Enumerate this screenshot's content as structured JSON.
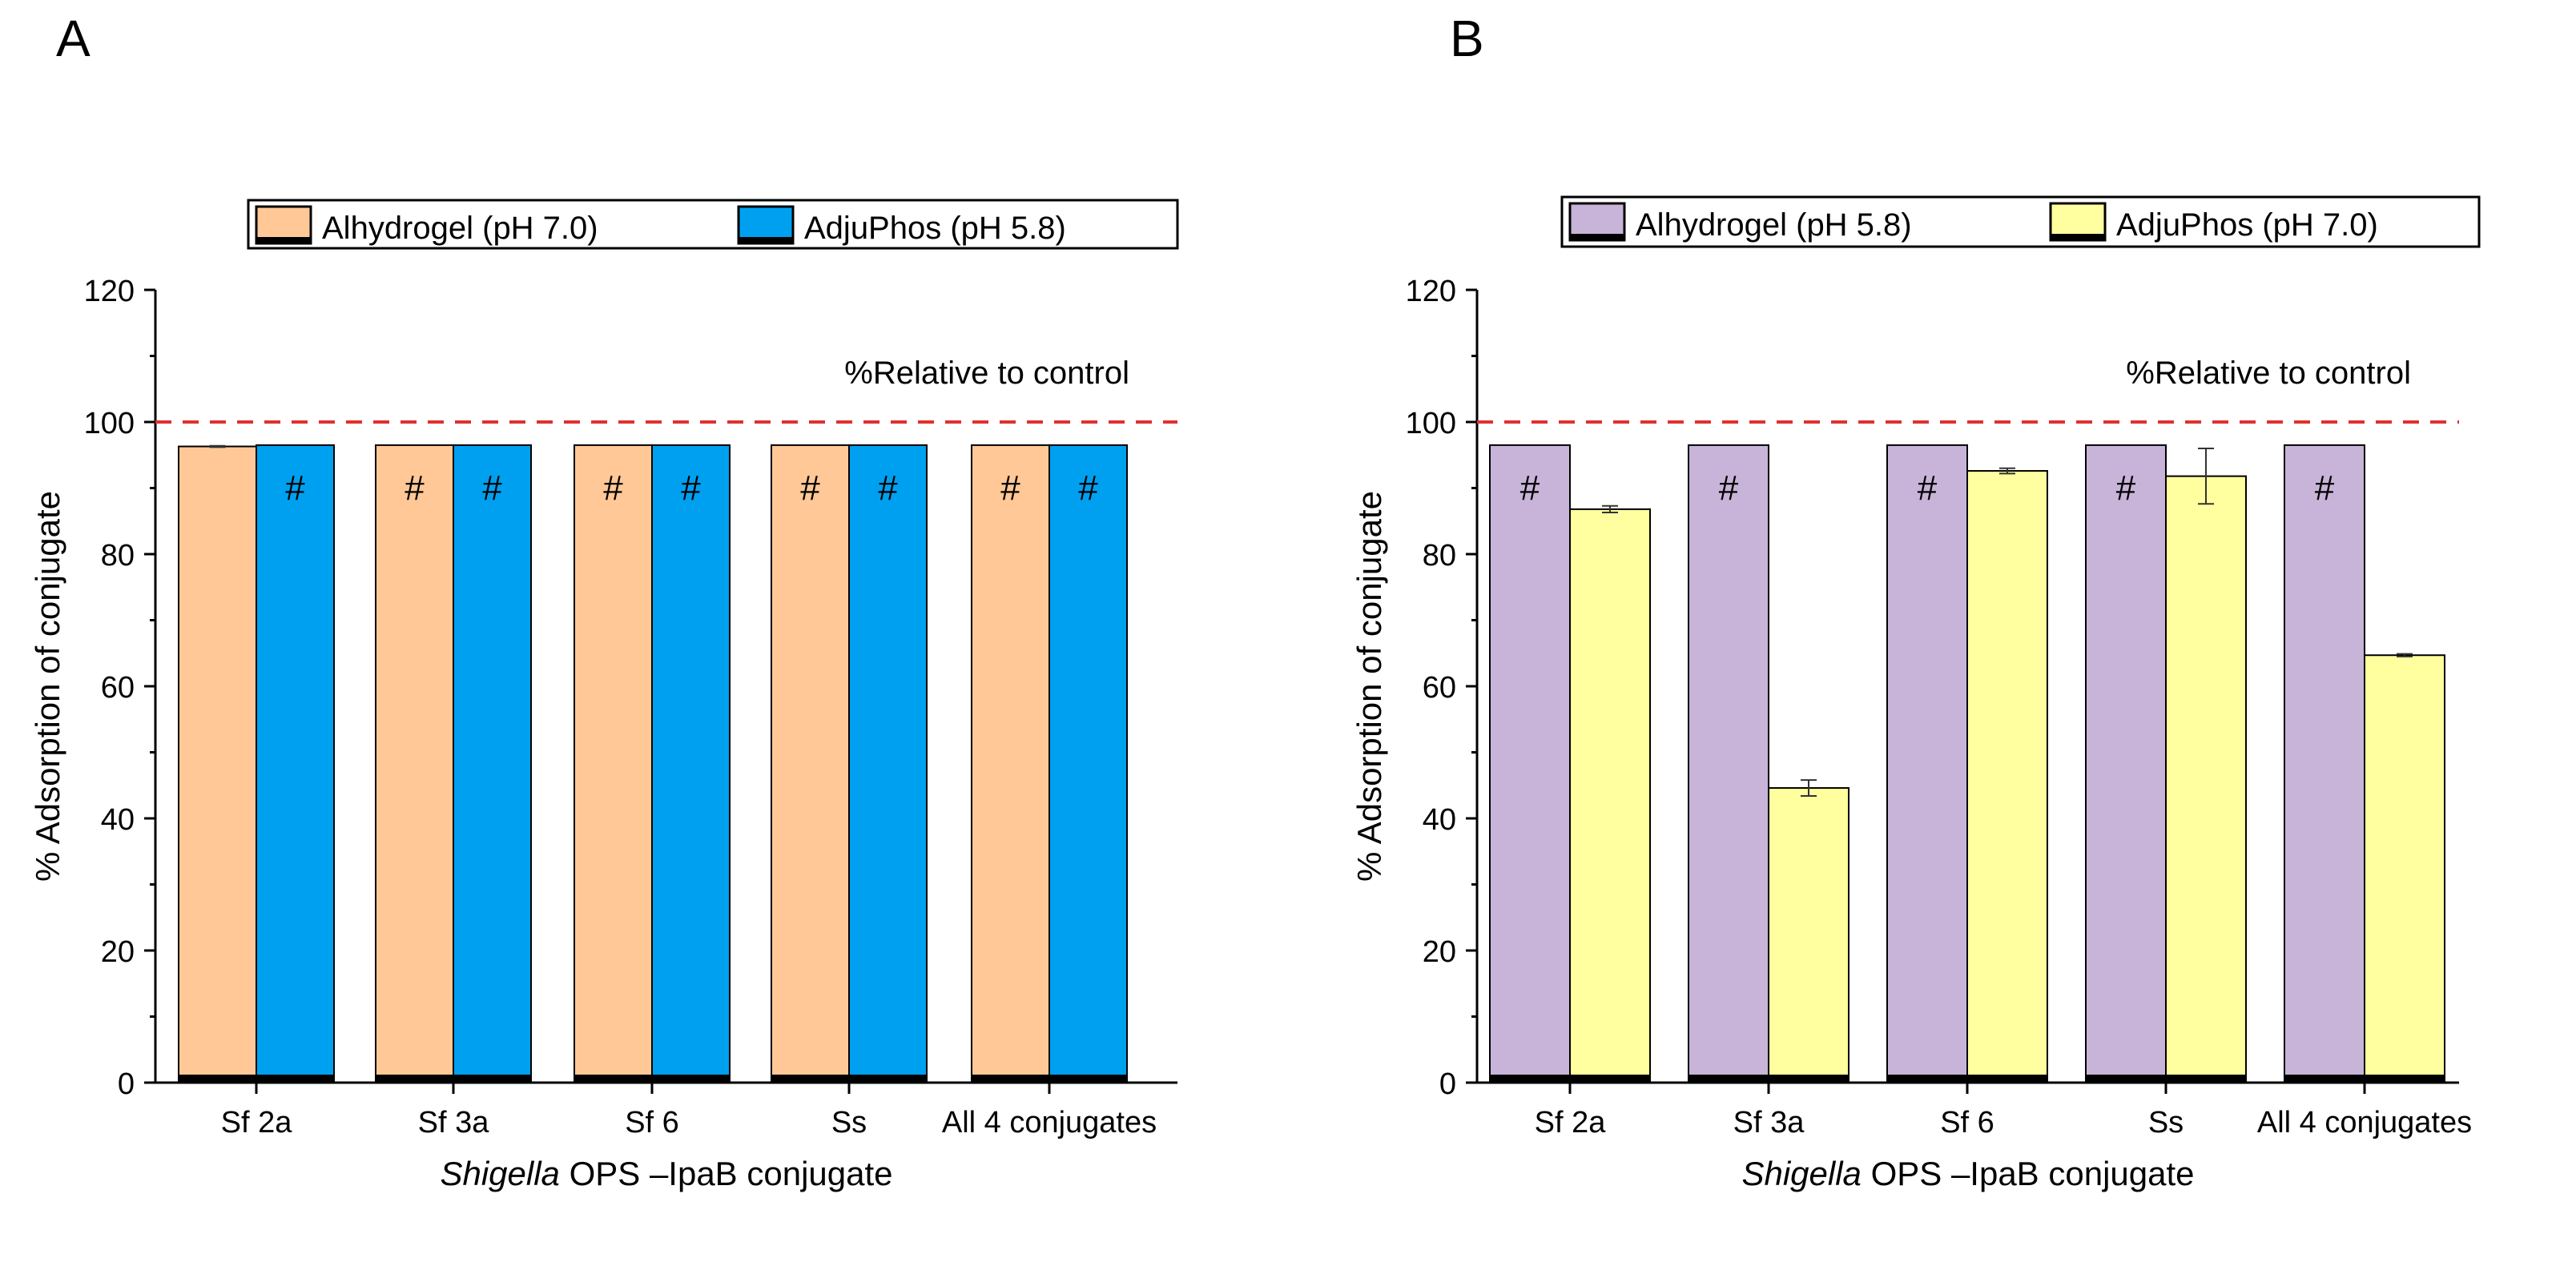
{
  "chart_data": [
    {
      "type": "bar",
      "panel_label": "A",
      "title": "",
      "xlabel_italic": "Shigella",
      "xlabel_rest": " OPS –IpaB conjugate",
      "ylabel": "% Adsorption of conjugate",
      "ylim": [
        0,
        120
      ],
      "yticks": [
        0,
        20,
        40,
        60,
        80,
        100,
        120
      ],
      "categories": [
        "Sf 2a",
        "Sf 3a",
        "Sf 6",
        "Ss",
        "All 4 conjugates"
      ],
      "reference_line": {
        "value": 100,
        "label": "%Relative to control",
        "color": "#e03030"
      },
      "legend_position": "top",
      "series": [
        {
          "name": "Alhydrogel (pH 7.0)",
          "color": "#ffc896",
          "values": [
            96.3,
            96.5,
            96.5,
            96.5,
            96.5
          ],
          "errors": [
            0.1,
            0,
            0,
            0,
            0
          ],
          "marks": [
            "",
            "#",
            "#",
            "#",
            "#"
          ]
        },
        {
          "name": "AdjuPhos (pH 5.8)",
          "color": "#00a0f0",
          "values": [
            96.5,
            96.5,
            96.5,
            96.5,
            96.5
          ],
          "errors": [
            0,
            0,
            0,
            0,
            0
          ],
          "marks": [
            "#",
            "#",
            "#",
            "#",
            "#"
          ]
        }
      ]
    },
    {
      "type": "bar",
      "panel_label": "B",
      "title": "",
      "xlabel_italic": "Shigella",
      "xlabel_rest": " OPS –IpaB conjugate",
      "ylabel": "% Adsorption of conjugate",
      "ylim": [
        0,
        120
      ],
      "yticks": [
        0,
        20,
        40,
        60,
        80,
        100,
        120
      ],
      "categories": [
        "Sf 2a",
        "Sf 3a",
        "Sf 6",
        "Ss",
        "All 4 conjugates"
      ],
      "reference_line": {
        "value": 100,
        "label": "%Relative to control",
        "color": "#e03030"
      },
      "legend_position": "top",
      "series": [
        {
          "name": "Alhydrogel (pH 5.8)",
          "color": "#c8b4d8",
          "values": [
            96.5,
            96.5,
            96.5,
            96.5,
            96.5
          ],
          "errors": [
            0,
            0,
            0,
            0,
            0
          ],
          "marks": [
            "#",
            "#",
            "#",
            "#",
            "#"
          ]
        },
        {
          "name": "AdjuPhos (pH 7.0)",
          "color": "#ffffa0",
          "values": [
            86.8,
            44.6,
            92.6,
            91.8,
            64.7
          ],
          "errors": [
            0.5,
            1.2,
            0.4,
            4.2,
            0.2
          ],
          "marks": [
            "",
            "",
            "",
            "",
            ""
          ]
        }
      ]
    }
  ]
}
